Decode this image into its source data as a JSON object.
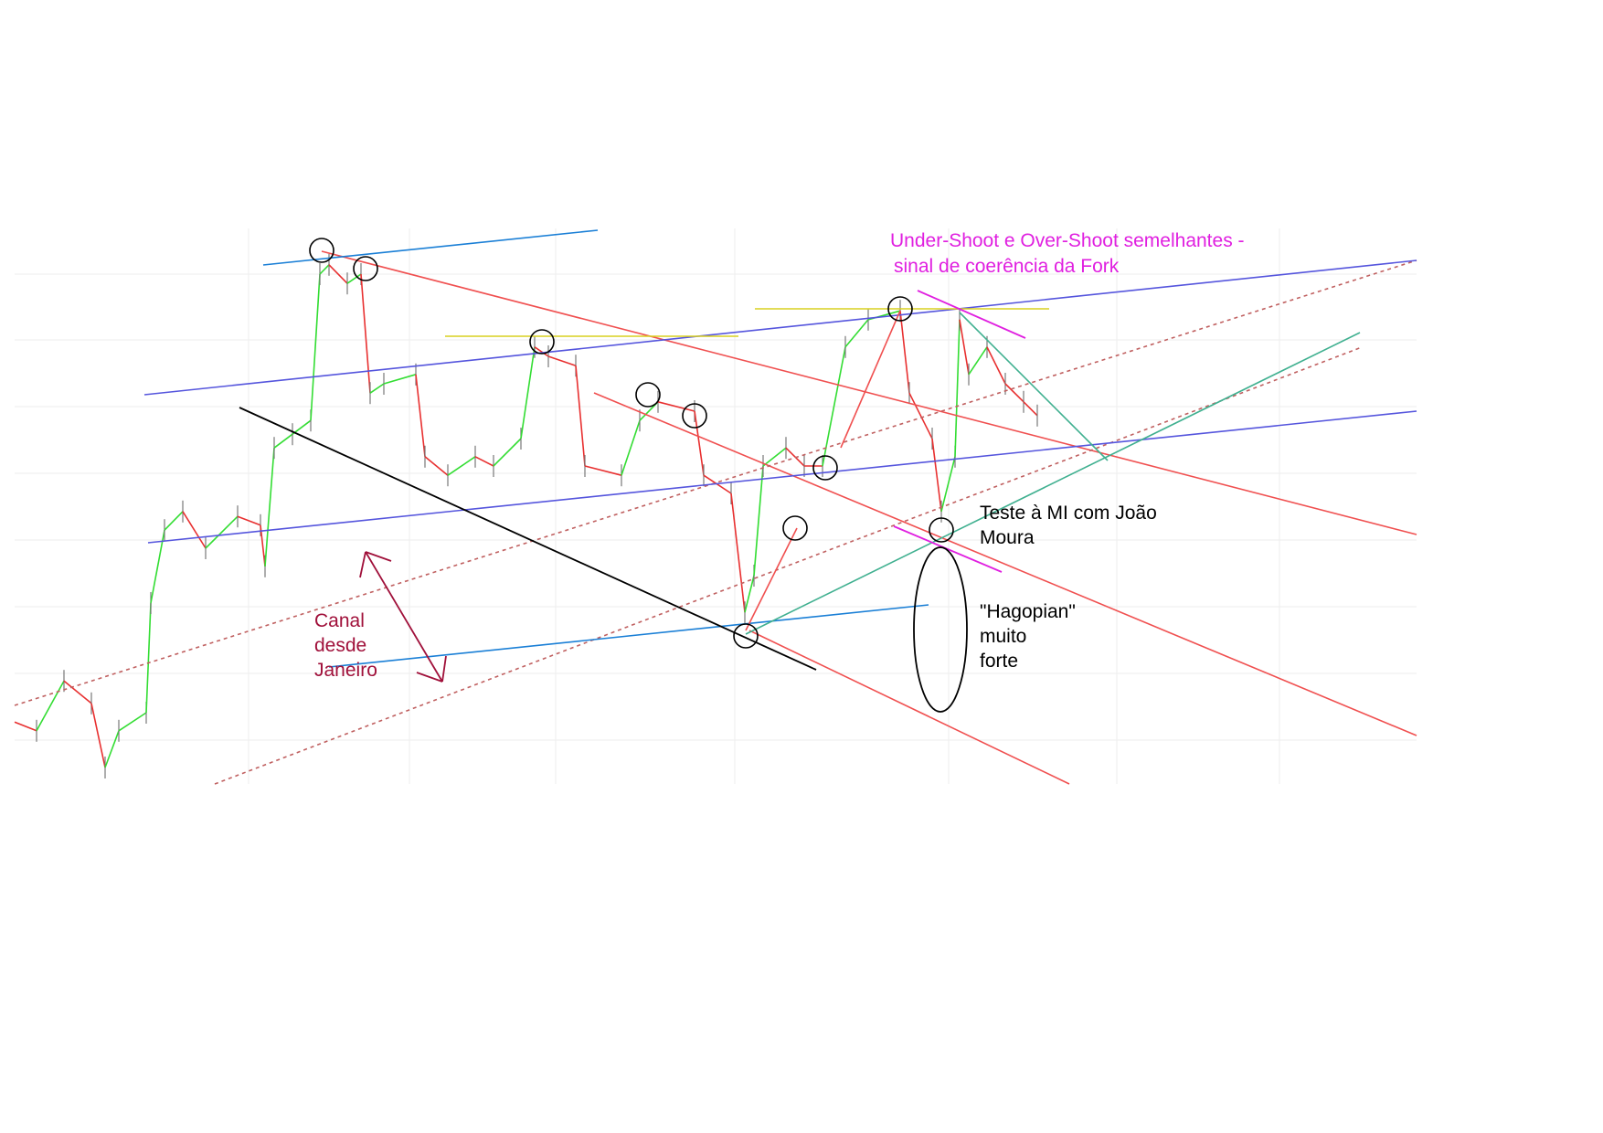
{
  "chart_data": {
    "type": "line",
    "title": "",
    "xlabel": "",
    "ylabel": "",
    "grid": true,
    "series": [
      {
        "t": [
          0,
          2.4,
          5.4,
          8.4,
          9.9,
          11.4,
          14.4,
          14.9,
          16.4,
          18.4,
          20.9,
          24.4,
          26.9,
          27.4,
          28.4,
          30.4,
          32.4,
          33.4,
          34.4,
          36.4,
          37.9,
          38.9,
          40.4,
          43.9,
          44.9,
          47.4,
          50.4,
          52.4,
          55.4,
          56.9,
          58.4,
          61.4,
          62.4,
          66.4,
          68.4,
          70.4,
          74.4,
          75.4,
          78.4,
          79.9,
          80.9,
          81.9,
          84.4,
          86.4,
          88.4,
          90.9,
          93.4,
          96.9,
          97.9,
          100.4,
          101.4,
          102.9,
          103.4,
          104.4,
          106.4,
          108.4,
          110.4,
          111.9
        ],
        "values": [
          11.3,
          9.7,
          18.8,
          14.7,
          3,
          9.7,
          13,
          33,
          46.3,
          49.7,
          43,
          48.8,
          47.2,
          39.7,
          61.3,
          63.8,
          66.3,
          93,
          94.7,
          91.3,
          93,
          71.3,
          73,
          74.7,
          59.7,
          56.3,
          59.7,
          58,
          63,
          79.7,
          78,
          76.3,
          58,
          56.3,
          66.3,
          69.7,
          68,
          56.3,
          53,
          31.3,
          38,
          58,
          61.3,
          58,
          58,
          79.7,
          84.7,
          86.3,
          71.3,
          63,
          49.7,
          59.7,
          84.7,
          74.7,
          79.7,
          73,
          69.7,
          67.2
        ]
      }
    ],
    "annotations": {
      "fork_note_line1": "Under-Shoot e Over-Shoot semelhantes -",
      "fork_note_line2": "sinal de coerência da Fork",
      "canal_note": "Canal\ndesde\nJaneiro",
      "teste_note": "Teste à MI com João\nMoura",
      "hagopian_note": "\"Hagopian\"\nmuito\nforte"
    },
    "colors": {
      "up": "#33dd33",
      "down": "#e83030",
      "neutral": "#777777",
      "fork_red": "#f05050",
      "channel_blue": "#5555dd",
      "light_blue": "#1a7fd6",
      "yellow": "#d8d020",
      "teal": "#40b090",
      "magenta": "#e020e0",
      "canal_text": "#a0103a",
      "dotted": "#c06060"
    }
  }
}
